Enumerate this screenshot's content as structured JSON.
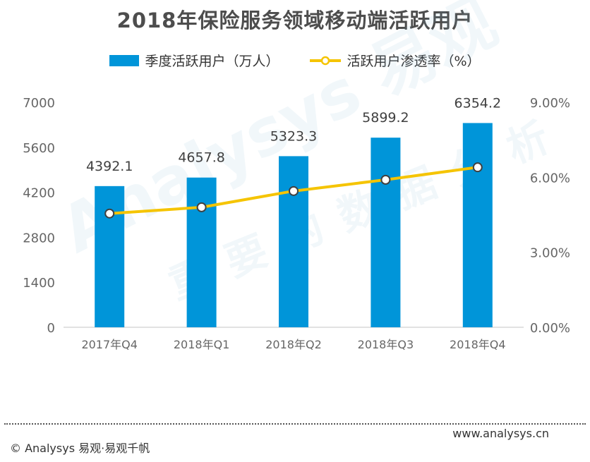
{
  "page": {
    "footer_left": "© Analysys 易观·易观千帆",
    "footer_right": "www.analysys.cn",
    "watermark_text": [
      "Analysys 易观",
      "重要的数据分析"
    ]
  },
  "colors": {
    "bar": "#0095d9",
    "line": "#f5c400",
    "axis_text": "#666666",
    "title": "#4d4d4d"
  },
  "chart_data": {
    "type": "bar",
    "title": "2018年保险服务领域移动端活跃用户",
    "categories": [
      "2017年Q4",
      "2018年Q1",
      "2018年Q2",
      "2018年Q3",
      "2018年Q4"
    ],
    "series": [
      {
        "name": "季度活跃用户（万人）",
        "type": "bar",
        "axis": "left",
        "values": [
          4392.1,
          4657.8,
          5323.3,
          5899.2,
          6354.2
        ],
        "labels": [
          "4392.1",
          "4657.8",
          "5323.3",
          "5899.2",
          "6354.2"
        ]
      },
      {
        "name": "活跃用户渗透率（%）",
        "type": "line",
        "axis": "right",
        "values": [
          4.55,
          4.8,
          5.45,
          5.9,
          6.4
        ]
      }
    ],
    "y_left": {
      "ylim": [
        0,
        7000
      ],
      "ticks": [
        0,
        1400,
        2800,
        4200,
        5600,
        7000
      ],
      "tick_labels": [
        "0",
        "1400",
        "2800",
        "4200",
        "5600",
        "7000"
      ]
    },
    "y_right": {
      "ylim": [
        0,
        9
      ],
      "ticks": [
        0,
        3,
        6,
        9
      ],
      "tick_labels": [
        "0.00%",
        "3.00%",
        "6.00%",
        "9.00%"
      ]
    },
    "grid": false,
    "legend_position": "top-center"
  }
}
